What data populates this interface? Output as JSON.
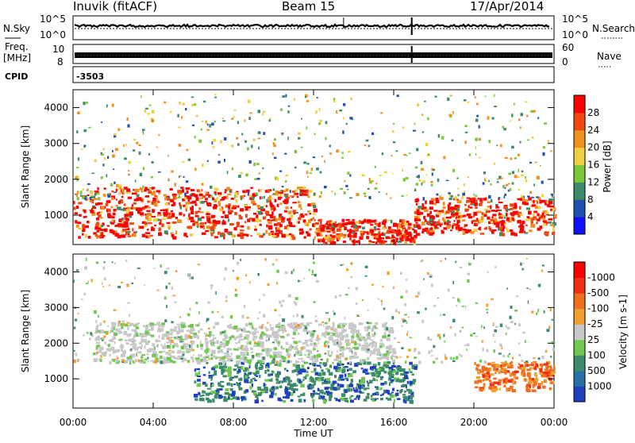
{
  "header": {
    "title": "Inuvik (fitACF)",
    "beam": "Beam 15",
    "date": "17/Apr/2014"
  },
  "top_panels": {
    "nsky_label": "N.Sky",
    "nsky_ticks": [
      "10^5",
      "10^0"
    ],
    "nsearch_label": "N.Search",
    "freq_label_1": "Freq.",
    "freq_label_2": "[MHz]",
    "freq_ticks": [
      "10",
      "8"
    ],
    "nave_ticks": [
      "60",
      "0"
    ],
    "nave_label": "Nave",
    "cpid_label": "CPID",
    "cpid_value": "-3503"
  },
  "chart_data": [
    {
      "type": "heatmap",
      "title": "",
      "xlabel": "",
      "ylabel": "Slant Range [km]",
      "x_ticks": [
        "00:00",
        "04:00",
        "08:00",
        "12:00",
        "16:00",
        "20:00",
        "00:00"
      ],
      "x_range_hours": [
        0,
        24
      ],
      "y_ticks": [
        1000,
        2000,
        3000,
        4000
      ],
      "y_range_km": [
        180,
        4500
      ],
      "colorbar": {
        "label": "Power [dB]",
        "ticks": [
          "4",
          "8",
          "12",
          "16",
          "20",
          "24",
          "28"
        ],
        "colors": [
          "#1010ff",
          "#2050b0",
          "#3c8c6a",
          "#7cc83c",
          "#f0d040",
          "#f09020",
          "#f04810",
          "#ff0000"
        ]
      },
      "dominant_features": [
        {
          "time_hours": [
            0,
            12
          ],
          "range_km": [
            400,
            1800
          ],
          "level": "high (24-28 dB)"
        },
        {
          "time_hours": [
            12,
            17
          ],
          "range_km": [
            250,
            900
          ],
          "level": "high (20-28 dB)"
        },
        {
          "time_hours": [
            17,
            24
          ],
          "range_km": [
            500,
            1500
          ],
          "level": "high (20-28 dB)"
        }
      ]
    },
    {
      "type": "heatmap",
      "title": "",
      "xlabel": "Time UT",
      "ylabel": "Slant Range [km]",
      "x_ticks": [
        "00:00",
        "04:00",
        "08:00",
        "12:00",
        "16:00",
        "20:00",
        "00:00"
      ],
      "x_range_hours": [
        0,
        24
      ],
      "y_ticks": [
        1000,
        2000,
        3000,
        4000
      ],
      "y_range_km": [
        180,
        4500
      ],
      "colorbar": {
        "label": "Velocity [m s-1]",
        "ticks": [
          "1000",
          "500",
          "100",
          "25",
          "-25",
          "-100",
          "-500",
          "-1000"
        ],
        "colors": [
          "#2040c0",
          "#2870a8",
          "#3c8c6a",
          "#70c850",
          "#c8c8c8",
          "#f0a030",
          "#f07020",
          "#f03010",
          "#ff0000"
        ]
      },
      "dominant_features": [
        {
          "time_hours": [
            6,
            17
          ],
          "range_km": [
            400,
            1500
          ],
          "velocity": "positive (100-1000 m/s)"
        },
        {
          "time_hours": [
            1,
            16
          ],
          "range_km": [
            1500,
            2600
          ],
          "velocity": "near zero (grey)"
        },
        {
          "time_hours": [
            20,
            24
          ],
          "range_km": [
            700,
            1500
          ],
          "velocity": "negative (-100 to -500 m/s)"
        }
      ]
    }
  ]
}
